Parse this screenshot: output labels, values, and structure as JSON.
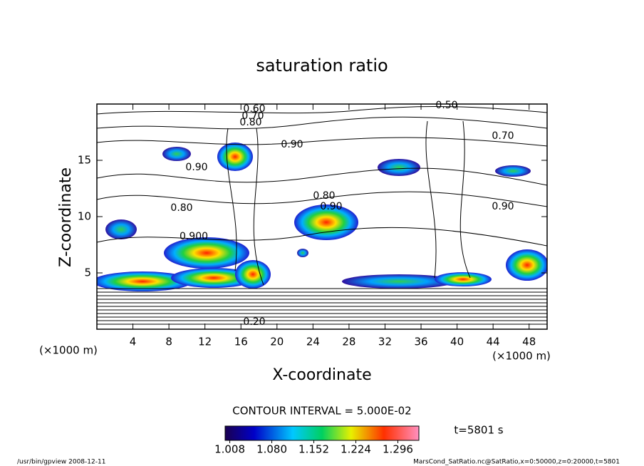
{
  "chart_data": {
    "type": "contour",
    "title": "saturation ratio",
    "x_label": "X-coordinate",
    "y_label": "Z-coordinate",
    "x_unit": "(×1000 m)",
    "y_unit": "(×1000 m)",
    "xlim": [
      0,
      50
    ],
    "ylim": [
      0,
      20
    ],
    "xticks": [
      4,
      8,
      12,
      16,
      20,
      24,
      28,
      32,
      36,
      40,
      44,
      48
    ],
    "yticks": [
      5,
      10,
      15
    ],
    "contour_labels": [
      "0.60",
      "0.70",
      "0.80",
      "0.90",
      "0.90",
      "0.80",
      "0.900",
      "0.80",
      "0.90",
      "0.50",
      "0.70",
      "0.90",
      "0.20"
    ],
    "contour_interval_text": "CONTOUR INTERVAL = 5.000E-02",
    "colorbar": {
      "lim": [
        1.0,
        1.332
      ],
      "ticks": [
        1.008,
        {
          "value": 1.08,
          "label": "1.080"
        },
        1.152,
        1.224,
        1.296
      ]
    },
    "time_label": "t=5801 s",
    "footer_left": "/usr/bin/gpview   2008-12-11",
    "footer_right": "MarsCond_SatRatio.nc@SatRatio,x=0:50000,z=0:20000,t=5801"
  }
}
